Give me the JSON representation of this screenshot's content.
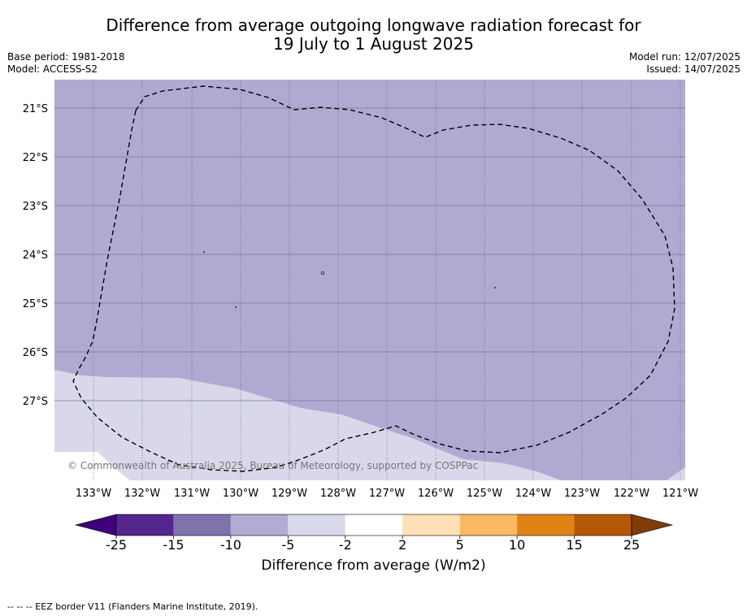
{
  "title": {
    "line1": "Difference from average outgoing longwave radiation forecast for",
    "line2": "19 July to 1 August 2025"
  },
  "header_left": {
    "base_period": "Base period: 1981-2018",
    "model": "Model: ACCESS-S2"
  },
  "header_right": {
    "model_run": "Model run: 12/07/2025",
    "issued": "Issued: 14/07/2025"
  },
  "map": {
    "lat_labels": [
      "21°S",
      "22°S",
      "23°S",
      "24°S",
      "25°S",
      "26°S",
      "27°S"
    ],
    "lon_labels": [
      "133°W",
      "132°W",
      "131°W",
      "130°W",
      "129°W",
      "128°W",
      "127°W",
      "126°W",
      "125°W",
      "124°W",
      "123°W",
      "122°W",
      "121°W"
    ],
    "attribution": "© Commonwealth of Australia 2025, Bureau of Meteorology, supported by COSPPac",
    "region_colors": {
      "minus10_to_minus5": "#b0aad2",
      "minus5_to_minus2": "#d8d8ea"
    }
  },
  "colorbar": {
    "tick_labels": [
      "-25",
      "-15",
      "-10",
      "-5",
      "-2",
      "2",
      "5",
      "10",
      "15",
      "25"
    ],
    "colors": [
      "#3f007d",
      "#54278f",
      "#8073ac",
      "#b2abd2",
      "#d8daeb",
      "#ffffff",
      "#fee0b6",
      "#fdb863",
      "#e08214",
      "#b35806",
      "#7f3b08"
    ],
    "label": "Difference from average (W/m2)"
  },
  "footnote": "--  --  -- EEZ border V11 (Flanders Marine Institute, 2019)."
}
